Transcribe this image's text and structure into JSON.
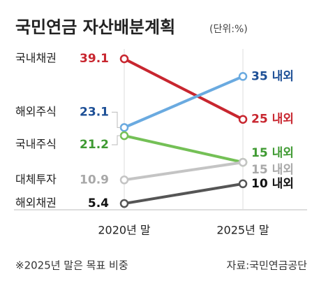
{
  "chart_data": {
    "type": "slope",
    "title": "국민연금 자산배분계획",
    "subtitle": "(단위:%)",
    "categories": [
      "2020년 말",
      "2025년 말"
    ],
    "series": [
      {
        "name": "국내채권",
        "color": "#c8262f",
        "label_color": "#c8262f",
        "values": [
          39.1,
          25
        ],
        "value_labels": [
          "39.1",
          "25 내외"
        ]
      },
      {
        "name": "해외주식",
        "color": "#6aaae0",
        "label_color": "#1d4f96",
        "values": [
          23.1,
          35
        ],
        "value_labels": [
          "23.1",
          "35 내외"
        ]
      },
      {
        "name": "국내주식",
        "color": "#74c056",
        "label_color": "#3f9a32",
        "values": [
          21.2,
          15
        ],
        "value_labels": [
          "21.2",
          "15 내외"
        ]
      },
      {
        "name": "대체투자",
        "color": "#c4c4c4",
        "label_color": "#a8a8a8",
        "values": [
          10.9,
          15
        ],
        "value_labels": [
          "10.9",
          "15 내외"
        ]
      },
      {
        "name": "해외채권",
        "color": "#555555",
        "label_color": "#111111",
        "values": [
          5.4,
          10
        ],
        "value_labels": [
          "5.4",
          "10 내외"
        ]
      }
    ],
    "note": "※2025년 말은 목표 비중",
    "source": "자료:국민연금공단"
  }
}
